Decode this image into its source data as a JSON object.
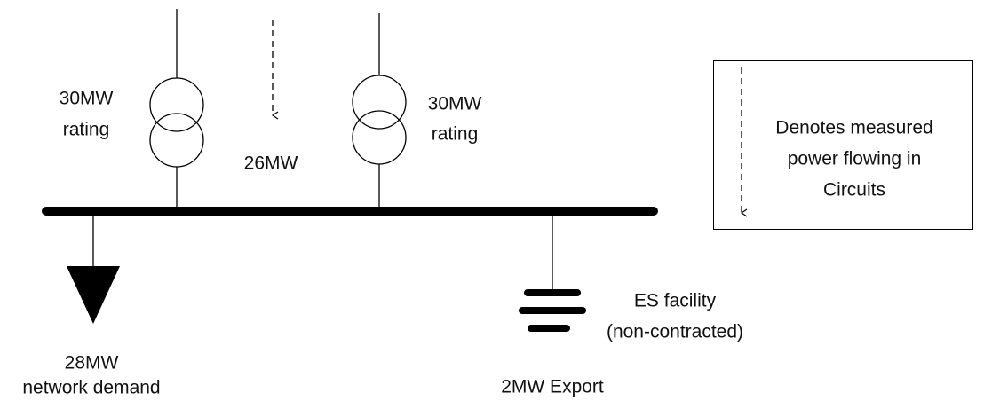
{
  "transformers": [
    {
      "label": [
        "30MW",
        "rating"
      ]
    },
    {
      "label": [
        "30MW",
        "rating"
      ]
    }
  ],
  "measured_flow": {
    "label": "26MW"
  },
  "load": {
    "label": [
      "28MW",
      "network demand"
    ]
  },
  "storage": {
    "label": [
      "ES facility",
      "(non-contracted)"
    ],
    "flow": "2MW Export"
  },
  "legend": {
    "text": [
      "Denotes measured",
      "power flowing in",
      "Circuits"
    ]
  }
}
